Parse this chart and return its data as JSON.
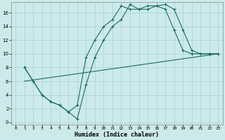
{
  "xlabel": "Humidex (Indice chaleur)",
  "bg_color": "#cceaea",
  "grid_color": "#aad0d0",
  "line_color": "#1a6b62",
  "xlim": [
    -0.5,
    23.5
  ],
  "ylim": [
    -0.3,
    17.5
  ],
  "xticks": [
    0,
    1,
    2,
    3,
    4,
    5,
    6,
    7,
    8,
    9,
    10,
    11,
    12,
    13,
    14,
    15,
    16,
    17,
    18,
    19,
    20,
    21,
    22,
    23
  ],
  "yticks": [
    0,
    2,
    4,
    6,
    8,
    10,
    12,
    14,
    16
  ],
  "line1_x": [
    1,
    2,
    3,
    4,
    5,
    6,
    7,
    8,
    9,
    10,
    11,
    12,
    13,
    14,
    15,
    16,
    17,
    18,
    19,
    20,
    21,
    22,
    23
  ],
  "line1_y": [
    8.0,
    6.0,
    4.0,
    3.0,
    2.5,
    1.5,
    0.5,
    5.5,
    9.5,
    12.0,
    14.0,
    15.0,
    17.2,
    16.5,
    16.5,
    17.0,
    17.2,
    16.5,
    13.5,
    10.5,
    10.0,
    10.0,
    10.0
  ],
  "line2_x": [
    1,
    2,
    3,
    4,
    5,
    6,
    7,
    8,
    9,
    10,
    11,
    12,
    13,
    14,
    15,
    16,
    17,
    18,
    19,
    20,
    21,
    22,
    23
  ],
  "line2_y": [
    8.0,
    6.0,
    4.0,
    3.0,
    2.5,
    1.5,
    2.5,
    9.5,
    12.0,
    14.0,
    15.0,
    17.0,
    16.5,
    16.5,
    17.0,
    17.0,
    16.5,
    13.5,
    10.5,
    10.0,
    10.0,
    10.0,
    10.0
  ],
  "line3_x": [
    1,
    23
  ],
  "line3_y": [
    6.0,
    10.0
  ]
}
